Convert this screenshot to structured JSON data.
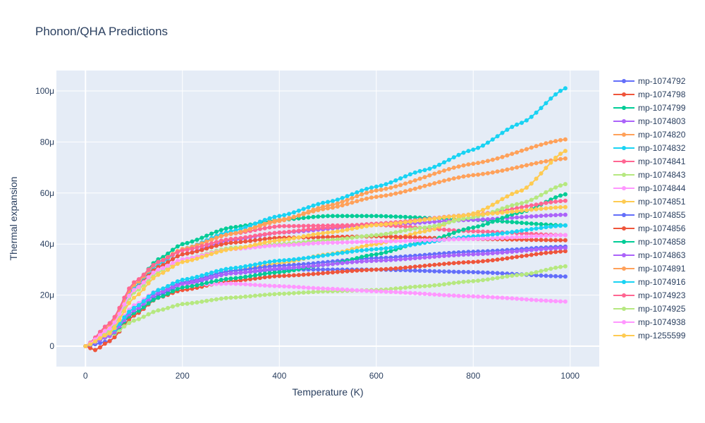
{
  "chart_data": {
    "type": "line",
    "title": "Phonon/QHA Predictions",
    "xlabel": "Temperature (K)",
    "ylabel": "Thermal expansion",
    "xlim": [
      -60,
      1060
    ],
    "ylim": [
      -8,
      108
    ],
    "x_ticks": [
      0,
      200,
      400,
      600,
      800,
      1000
    ],
    "x_tick_labels": [
      "0",
      "200",
      "400",
      "600",
      "800",
      "1000"
    ],
    "y_ticks": [
      0,
      20,
      40,
      60,
      80,
      100
    ],
    "y_tick_labels": [
      "0",
      "20μ",
      "40μ",
      "60μ",
      "80μ",
      "100μ"
    ],
    "y_unit_note": "values in units of 1e-6 (μ)",
    "x_start": 0,
    "x_end": 990,
    "x_step": 10,
    "grid": true,
    "legend_position": "right",
    "plot_background": "#e5ecf6",
    "series": [
      {
        "name": "mp-1074792",
        "color": "#636efa",
        "anchors": [
          [
            0,
            0
          ],
          [
            50,
            2
          ],
          [
            100,
            12
          ],
          [
            150,
            20
          ],
          [
            200,
            24
          ],
          [
            300,
            28.5
          ],
          [
            400,
            30
          ],
          [
            600,
            30
          ],
          [
            800,
            29
          ],
          [
            990,
            27.3
          ]
        ]
      },
      {
        "name": "mp-1074798",
        "color": "#ef553b",
        "anchors": [
          [
            0,
            0
          ],
          [
            20,
            -1.5
          ],
          [
            50,
            2
          ],
          [
            100,
            12
          ],
          [
            150,
            19
          ],
          [
            200,
            22
          ],
          [
            300,
            25.5
          ],
          [
            400,
            27.5
          ],
          [
            600,
            30
          ],
          [
            800,
            33
          ],
          [
            990,
            37.2
          ]
        ]
      },
      {
        "name": "mp-1074799",
        "color": "#00cc96",
        "anchors": [
          [
            0,
            0
          ],
          [
            50,
            8
          ],
          [
            100,
            24
          ],
          [
            150,
            34
          ],
          [
            200,
            40
          ],
          [
            300,
            46.5
          ],
          [
            400,
            49.5
          ],
          [
            500,
            51
          ],
          [
            600,
            51
          ],
          [
            800,
            49.5
          ],
          [
            990,
            47.3
          ]
        ]
      },
      {
        "name": "mp-1074803",
        "color": "#ab63fa",
        "anchors": [
          [
            0,
            0
          ],
          [
            50,
            6
          ],
          [
            100,
            22
          ],
          [
            150,
            31
          ],
          [
            200,
            36
          ],
          [
            300,
            41.5
          ],
          [
            400,
            44.5
          ],
          [
            600,
            47.5
          ],
          [
            800,
            49.5
          ],
          [
            990,
            51.5
          ]
        ]
      },
      {
        "name": "mp-1074820",
        "color": "#ffa15a",
        "anchors": [
          [
            0,
            0
          ],
          [
            50,
            7
          ],
          [
            100,
            24
          ],
          [
            150,
            33
          ],
          [
            200,
            38
          ],
          [
            300,
            44
          ],
          [
            400,
            49.5
          ],
          [
            500,
            54
          ],
          [
            600,
            58.5
          ],
          [
            800,
            67
          ],
          [
            990,
            73.5
          ]
        ]
      },
      {
        "name": "mp-1074832",
        "color": "#19d3f3",
        "anchors": [
          [
            0,
            0
          ],
          [
            50,
            7
          ],
          [
            100,
            23
          ],
          [
            150,
            32
          ],
          [
            200,
            38
          ],
          [
            300,
            45
          ],
          [
            400,
            51
          ],
          [
            500,
            56.5
          ],
          [
            600,
            62.5
          ],
          [
            700,
            69
          ],
          [
            800,
            77
          ],
          [
            900,
            87.5
          ],
          [
            990,
            101
          ]
        ]
      },
      {
        "name": "mp-1074841",
        "color": "#ff6692",
        "anchors": [
          [
            0,
            0
          ],
          [
            50,
            8
          ],
          [
            100,
            24
          ],
          [
            150,
            33
          ],
          [
            200,
            38
          ],
          [
            300,
            44
          ],
          [
            400,
            47
          ],
          [
            600,
            47.5
          ],
          [
            800,
            45
          ],
          [
            990,
            43.5
          ]
        ]
      },
      {
        "name": "mp-1074843",
        "color": "#b6e880",
        "anchors": [
          [
            0,
            0
          ],
          [
            50,
            4
          ],
          [
            100,
            10
          ],
          [
            150,
            14
          ],
          [
            200,
            16.5
          ],
          [
            300,
            19
          ],
          [
            400,
            20.5
          ],
          [
            500,
            21.5
          ],
          [
            600,
            22
          ],
          [
            700,
            23.5
          ],
          [
            800,
            25.5
          ],
          [
            900,
            28
          ],
          [
            990,
            31.3
          ]
        ]
      },
      {
        "name": "mp-1074844",
        "color": "#ff97ff",
        "anchors": [
          [
            0,
            0
          ],
          [
            50,
            5
          ],
          [
            100,
            16
          ],
          [
            150,
            22
          ],
          [
            200,
            24
          ],
          [
            300,
            24.5
          ],
          [
            400,
            23.5
          ],
          [
            500,
            22.5
          ],
          [
            600,
            21.5
          ],
          [
            800,
            19.5
          ],
          [
            990,
            17.5
          ]
        ]
      },
      {
        "name": "mp-1074851",
        "color": "#fecb52",
        "anchors": [
          [
            0,
            0
          ],
          [
            50,
            4
          ],
          [
            100,
            14
          ],
          [
            150,
            21
          ],
          [
            200,
            25
          ],
          [
            300,
            29.5
          ],
          [
            400,
            32.5
          ],
          [
            500,
            36
          ],
          [
            600,
            40
          ],
          [
            700,
            45
          ],
          [
            800,
            52
          ],
          [
            900,
            61
          ],
          [
            990,
            76.5
          ]
        ]
      },
      {
        "name": "mp-1074855",
        "color": "#636efa",
        "anchors": [
          [
            0,
            0
          ],
          [
            50,
            4
          ],
          [
            100,
            14
          ],
          [
            150,
            21
          ],
          [
            200,
            25
          ],
          [
            300,
            29.5
          ],
          [
            400,
            31.5
          ],
          [
            600,
            34.5
          ],
          [
            800,
            37
          ],
          [
            990,
            39
          ]
        ]
      },
      {
        "name": "mp-1074856",
        "color": "#ef553b",
        "anchors": [
          [
            0,
            0
          ],
          [
            50,
            6
          ],
          [
            100,
            22
          ],
          [
            150,
            31
          ],
          [
            200,
            36
          ],
          [
            300,
            40.5
          ],
          [
            400,
            42.5
          ],
          [
            600,
            43
          ],
          [
            800,
            42
          ],
          [
            990,
            41.5
          ]
        ]
      },
      {
        "name": "mp-1074858",
        "color": "#00cc96",
        "anchors": [
          [
            0,
            0
          ],
          [
            50,
            4
          ],
          [
            100,
            13
          ],
          [
            150,
            19
          ],
          [
            200,
            23
          ],
          [
            300,
            26.5
          ],
          [
            400,
            29
          ],
          [
            500,
            32
          ],
          [
            600,
            36
          ],
          [
            700,
            41
          ],
          [
            800,
            46.5
          ],
          [
            900,
            52.5
          ],
          [
            990,
            59.5
          ]
        ]
      },
      {
        "name": "mp-1074863",
        "color": "#ab63fa",
        "anchors": [
          [
            0,
            0
          ],
          [
            50,
            4
          ],
          [
            100,
            14
          ],
          [
            150,
            21
          ],
          [
            200,
            24.5
          ],
          [
            300,
            28.5
          ],
          [
            400,
            30.5
          ],
          [
            600,
            33.5
          ],
          [
            800,
            36
          ],
          [
            990,
            38.5
          ]
        ]
      },
      {
        "name": "mp-1074891",
        "color": "#ffa15a",
        "anchors": [
          [
            0,
            0
          ],
          [
            50,
            8
          ],
          [
            100,
            24
          ],
          [
            150,
            33
          ],
          [
            200,
            38
          ],
          [
            300,
            44
          ],
          [
            400,
            49
          ],
          [
            500,
            55
          ],
          [
            600,
            61
          ],
          [
            800,
            71.5
          ],
          [
            990,
            81
          ]
        ]
      },
      {
        "name": "mp-1074916",
        "color": "#19d3f3",
        "anchors": [
          [
            0,
            0
          ],
          [
            50,
            5
          ],
          [
            100,
            15
          ],
          [
            150,
            22
          ],
          [
            200,
            26
          ],
          [
            300,
            30.5
          ],
          [
            400,
            33.5
          ],
          [
            600,
            38
          ],
          [
            800,
            43
          ],
          [
            990,
            47.3
          ]
        ]
      },
      {
        "name": "mp-1074923",
        "color": "#ff6692",
        "anchors": [
          [
            0,
            0
          ],
          [
            50,
            9
          ],
          [
            100,
            25
          ],
          [
            150,
            33
          ],
          [
            200,
            37.5
          ],
          [
            300,
            42
          ],
          [
            400,
            44.5
          ],
          [
            500,
            46.5
          ],
          [
            600,
            48
          ],
          [
            800,
            51.5
          ],
          [
            990,
            57
          ]
        ]
      },
      {
        "name": "mp-1074925",
        "color": "#b6e880",
        "anchors": [
          [
            0,
            0
          ],
          [
            50,
            6
          ],
          [
            100,
            21
          ],
          [
            150,
            29
          ],
          [
            200,
            34
          ],
          [
            300,
            38.5
          ],
          [
            400,
            40
          ],
          [
            500,
            41.5
          ],
          [
            600,
            43.5
          ],
          [
            700,
            46.5
          ],
          [
            800,
            50.5
          ],
          [
            900,
            56
          ],
          [
            990,
            63.5
          ]
        ]
      },
      {
        "name": "mp-1074938",
        "color": "#ff97ff",
        "anchors": [
          [
            0,
            0
          ],
          [
            50,
            7
          ],
          [
            100,
            22
          ],
          [
            150,
            30
          ],
          [
            200,
            34
          ],
          [
            300,
            38
          ],
          [
            400,
            39.5
          ],
          [
            500,
            40.5
          ],
          [
            600,
            41
          ],
          [
            800,
            42
          ],
          [
            990,
            43.5
          ]
        ]
      },
      {
        "name": "mp-1255599",
        "color": "#fecb52",
        "anchors": [
          [
            0,
            0
          ],
          [
            50,
            5
          ],
          [
            100,
            19
          ],
          [
            150,
            28
          ],
          [
            200,
            33
          ],
          [
            300,
            38
          ],
          [
            400,
            41.5
          ],
          [
            500,
            44.5
          ],
          [
            600,
            47.5
          ],
          [
            800,
            51.5
          ],
          [
            990,
            54.5
          ]
        ]
      }
    ]
  }
}
